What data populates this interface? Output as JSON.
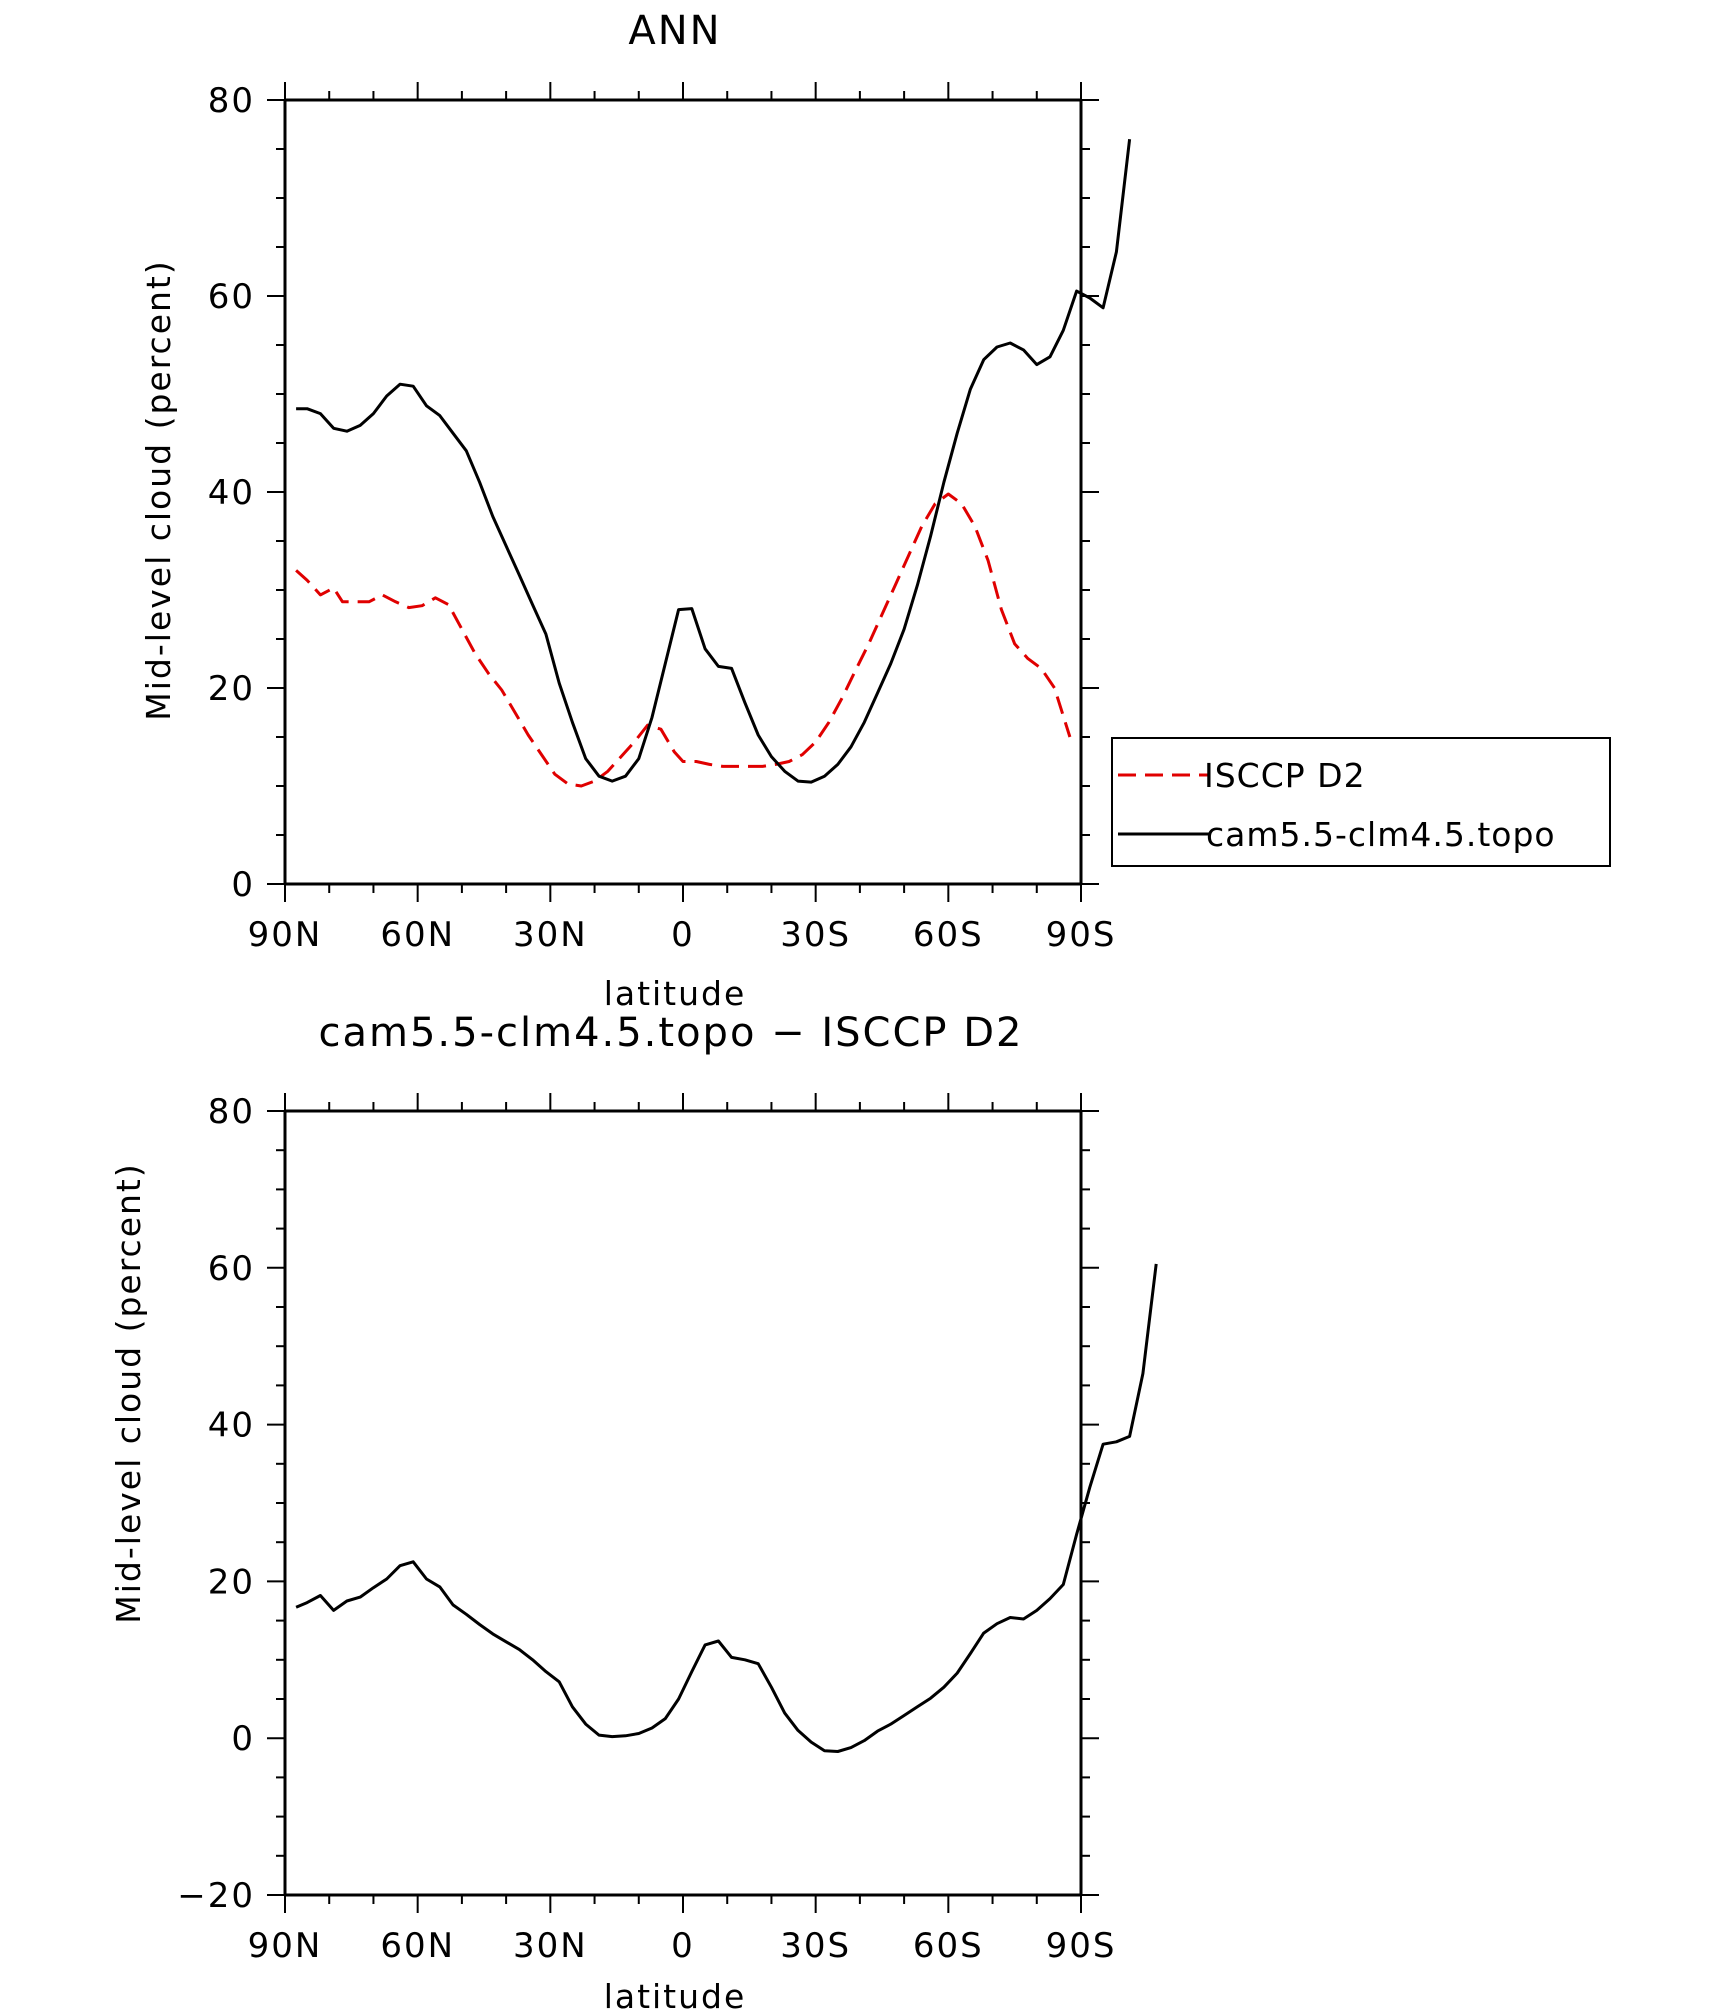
{
  "chart_data": [
    {
      "type": "line",
      "title": "ANN",
      "xlabel": "latitude",
      "ylabel": "Mid-level cloud (percent)",
      "xlim": [
        90,
        -90
      ],
      "ylim": [
        0,
        80
      ],
      "xticks": [
        90,
        60,
        30,
        0,
        -30,
        -60,
        -90
      ],
      "xtick_labels": [
        "90N",
        "60N",
        "30N",
        "0",
        "30S",
        "60S",
        "90S"
      ],
      "yticks": [
        0,
        20,
        40,
        60,
        80
      ],
      "ytick_labels": [
        "0",
        "20",
        "40",
        "60",
        "80"
      ],
      "legend_position": "right",
      "series": [
        {
          "name": "ISCCP D2",
          "color": "#e00000",
          "dash": "dashed",
          "points": [
            [
              87.5,
              32
            ],
            [
              85,
              31
            ],
            [
              82,
              29.5
            ],
            [
              79,
              30.2
            ],
            [
              77,
              28.8
            ],
            [
              74,
              28.8
            ],
            [
              71,
              28.8
            ],
            [
              68,
              29.5
            ],
            [
              65,
              28.8
            ],
            [
              62,
              28.2
            ],
            [
              59,
              28.4
            ],
            [
              56,
              29.2
            ],
            [
              53,
              28.5
            ],
            [
              50,
              26
            ],
            [
              47,
              23.5
            ],
            [
              44,
              21.5
            ],
            [
              41,
              19.8
            ],
            [
              38,
              17.5
            ],
            [
              35,
              15.2
            ],
            [
              32,
              13.2
            ],
            [
              29,
              11.2
            ],
            [
              26,
              10.2
            ],
            [
              23,
              10
            ],
            [
              20,
              10.5
            ],
            [
              17,
              11.5
            ],
            [
              14,
              13
            ],
            [
              11,
              14.5
            ],
            [
              8,
              16.2
            ],
            [
              5,
              15.8
            ],
            [
              2,
              13.5
            ],
            [
              0,
              12.5
            ],
            [
              -3,
              12.5
            ],
            [
              -6,
              12.2
            ],
            [
              -9,
              12
            ],
            [
              -12,
              12
            ],
            [
              -15,
              12
            ],
            [
              -18,
              12
            ],
            [
              -21,
              12.2
            ],
            [
              -24,
              12.5
            ],
            [
              -27,
              13.2
            ],
            [
              -30,
              14.5
            ],
            [
              -33,
              16.5
            ],
            [
              -36,
              19
            ],
            [
              -39,
              21.8
            ],
            [
              -42,
              24.5
            ],
            [
              -45,
              27.5
            ],
            [
              -48,
              30.5
            ],
            [
              -51,
              33.5
            ],
            [
              -54,
              36.5
            ],
            [
              -57,
              38.8
            ],
            [
              -60,
              39.8
            ],
            [
              -63,
              38.8
            ],
            [
              -66,
              36.5
            ],
            [
              -69,
              33
            ],
            [
              -72,
              28
            ],
            [
              -75,
              24.5
            ],
            [
              -78,
              23
            ],
            [
              -81,
              22
            ],
            [
              -84,
              20
            ],
            [
              -87.5,
              15
            ]
          ]
        },
        {
          "name": "cam5.5-clm4.5.topo",
          "color": "#000000",
          "dash": "solid",
          "points": [
            [
              87.5,
              48.5
            ],
            [
              85,
              48.5
            ],
            [
              82,
              48
            ],
            [
              79,
              46.5
            ],
            [
              76,
              46.2
            ],
            [
              73,
              46.8
            ],
            [
              70,
              48
            ],
            [
              67,
              49.8
            ],
            [
              64,
              51
            ],
            [
              61,
              50.8
            ],
            [
              58,
              48.8
            ],
            [
              55,
              47.8
            ],
            [
              52,
              46
            ],
            [
              49,
              44.2
            ],
            [
              46,
              41
            ],
            [
              43,
              37.5
            ],
            [
              40,
              34.5
            ],
            [
              37,
              31.5
            ],
            [
              34,
              28.5
            ],
            [
              31,
              25.5
            ],
            [
              28,
              20.5
            ],
            [
              25,
              16.5
            ],
            [
              22,
              12.8
            ],
            [
              19,
              11
            ],
            [
              16,
              10.5
            ],
            [
              13,
              11
            ],
            [
              10,
              12.8
            ],
            [
              7,
              17
            ],
            [
              4,
              22.5
            ],
            [
              1,
              28
            ],
            [
              -2,
              28.1
            ],
            [
              -5,
              24
            ],
            [
              -8,
              22.2
            ],
            [
              -11,
              22
            ],
            [
              -14,
              18.5
            ],
            [
              -17,
              15.2
            ],
            [
              -20,
              13
            ],
            [
              -23,
              11.5
            ],
            [
              -26,
              10.5
            ],
            [
              -29,
              10.4
            ],
            [
              -32,
              11
            ],
            [
              -35,
              12.2
            ],
            [
              -38,
              14
            ],
            [
              -41,
              16.5
            ],
            [
              -44,
              19.5
            ],
            [
              -47,
              22.5
            ],
            [
              -50,
              26
            ],
            [
              -53,
              30.5
            ],
            [
              -56,
              35.5
            ],
            [
              -59,
              41
            ],
            [
              -62,
              46
            ],
            [
              -65,
              50.5
            ],
            [
              -68,
              53.5
            ],
            [
              -71,
              54.8
            ],
            [
              -74,
              55.2
            ],
            [
              -77,
              54.5
            ],
            [
              -80,
              53
            ],
            [
              -83,
              53.8
            ],
            [
              -86,
              56.5
            ],
            [
              -89,
              60.5
            ],
            [
              -92,
              59.8
            ],
            [
              -95,
              58.8
            ],
            [
              -98,
              64.5
            ],
            [
              -101,
              76
            ]
          ]
        }
      ]
    },
    {
      "type": "line",
      "title": "cam5.5-clm4.5.topo − ISCCP D2",
      "xlabel": "latitude",
      "ylabel": "Mid-level cloud (percent)",
      "xlim": [
        90,
        -90
      ],
      "ylim": [
        -20,
        80
      ],
      "xticks": [
        90,
        60,
        30,
        0,
        -30,
        -60,
        -90
      ],
      "xtick_labels": [
        "90N",
        "60N",
        "30N",
        "0",
        "30S",
        "60S",
        "90S"
      ],
      "yticks": [
        -20,
        0,
        20,
        40,
        60,
        80
      ],
      "ytick_labels": [
        "−20",
        "0",
        "20",
        "40",
        "60",
        "80"
      ],
      "series": [
        {
          "color": "#000000",
          "dash": "solid",
          "points": [
            [
              87.5,
              16.7
            ],
            [
              85,
              17.3
            ],
            [
              82,
              18.2
            ],
            [
              79,
              16.3
            ],
            [
              76,
              17.5
            ],
            [
              73,
              18
            ],
            [
              70,
              19.2
            ],
            [
              67,
              20.3
            ],
            [
              64,
              22
            ],
            [
              61,
              22.5
            ],
            [
              58,
              20.3
            ],
            [
              55,
              19.3
            ],
            [
              52,
              17
            ],
            [
              49,
              15.8
            ],
            [
              46,
              14.5
            ],
            [
              43,
              13.3
            ],
            [
              40,
              12.3
            ],
            [
              37,
              11.3
            ],
            [
              34,
              10
            ],
            [
              31,
              8.5
            ],
            [
              28,
              7.2
            ],
            [
              25,
              4
            ],
            [
              22,
              1.8
            ],
            [
              19,
              0.4
            ],
            [
              16,
              0.2
            ],
            [
              13,
              0.3
            ],
            [
              10,
              0.6
            ],
            [
              7,
              1.3
            ],
            [
              4,
              2.5
            ],
            [
              1,
              5
            ],
            [
              -2,
              8.5
            ],
            [
              -5,
              11.9
            ],
            [
              -8,
              12.4
            ],
            [
              -11,
              10.3
            ],
            [
              -14,
              10
            ],
            [
              -17,
              9.5
            ],
            [
              -20,
              6.5
            ],
            [
              -23,
              3.2
            ],
            [
              -26,
              1
            ],
            [
              -29,
              -0.5
            ],
            [
              -32,
              -1.6
            ],
            [
              -35,
              -1.7
            ],
            [
              -38,
              -1.2
            ],
            [
              -41,
              -0.3
            ],
            [
              -44,
              0.9
            ],
            [
              -47,
              1.8
            ],
            [
              -50,
              2.9
            ],
            [
              -53,
              4
            ],
            [
              -56,
              5.1
            ],
            [
              -59,
              6.5
            ],
            [
              -62,
              8.3
            ],
            [
              -65,
              10.8
            ],
            [
              -68,
              13.4
            ],
            [
              -71,
              14.6
            ],
            [
              -74,
              15.4
            ],
            [
              -77,
              15.2
            ],
            [
              -80,
              16.3
            ],
            [
              -83,
              17.8
            ],
            [
              -86,
              19.6
            ],
            [
              -89,
              26
            ],
            [
              -92,
              32
            ],
            [
              -95,
              37.5
            ],
            [
              -98,
              37.8
            ],
            [
              -101,
              38.5
            ],
            [
              -104,
              46.5
            ],
            [
              -107,
              60.5
            ]
          ]
        }
      ]
    }
  ]
}
